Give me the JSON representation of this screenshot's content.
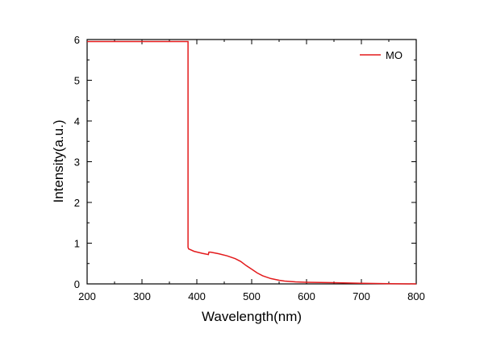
{
  "chart_data": {
    "type": "line",
    "title": "",
    "xlabel": "Wavelength(nm)",
    "ylabel": "Intensity(a.u.)",
    "xlim": [
      200,
      800
    ],
    "ylim": [
      0,
      6
    ],
    "xticks": [
      200,
      300,
      400,
      500,
      600,
      700,
      800
    ],
    "yticks": [
      0,
      1,
      2,
      3,
      4,
      5,
      6
    ],
    "grid": false,
    "legend": {
      "placement": "top-right",
      "entries": [
        "MO"
      ]
    },
    "series": [
      {
        "name": "MO",
        "color": "#e31a1c",
        "x": [
          200,
          384,
          384,
          385,
          395,
          410,
          421,
          422,
          425,
          440,
          455,
          470,
          480,
          490,
          500,
          510,
          520,
          535,
          550,
          560,
          580,
          600,
          650,
          700,
          750,
          800
        ],
        "y": [
          5.95,
          5.95,
          0.9,
          0.86,
          0.8,
          0.75,
          0.72,
          0.78,
          0.78,
          0.74,
          0.69,
          0.62,
          0.55,
          0.45,
          0.36,
          0.27,
          0.2,
          0.13,
          0.09,
          0.07,
          0.05,
          0.04,
          0.03,
          0.015,
          0.005,
          0.0
        ]
      }
    ]
  }
}
